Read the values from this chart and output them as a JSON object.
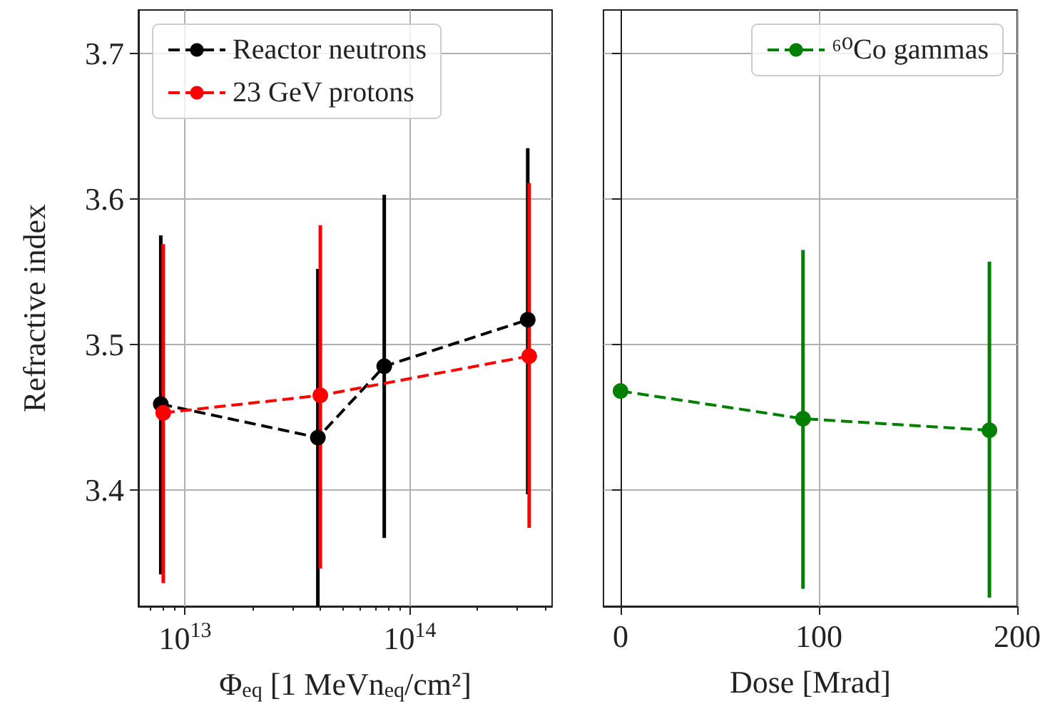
{
  "chart_data": [
    {
      "type": "line",
      "ylabel": "Refractive index",
      "xlabel": "Φ$_{eq}$ [1 MeVn$_{eq}$/cm²]",
      "log": "x",
      "xlim": [
        6200000000000.0,
        430000000000000.0
      ],
      "xticks": [
        {
          "value": 10000000000000.0,
          "label": "10$^{13}$"
        },
        {
          "value": 100000000000000.0,
          "label": "10$^{14}$"
        }
      ],
      "ylim": [
        3.32,
        3.73
      ],
      "yticks": [
        3.4,
        3.5,
        3.6,
        3.7
      ],
      "grid": true,
      "legend": "top left",
      "marker": "circle",
      "line_style": "dashed",
      "series": [
        {
          "name": "Reactor neutrons",
          "color": "#000000",
          "x": [
            7800000000000.0,
            39000000000000.0,
            77000000000000.0,
            335000000000000.0
          ],
          "values": [
            3.459,
            3.436,
            3.485,
            3.517
          ],
          "errors": [
            [
              3.342,
              3.575
            ],
            [
              3.32,
              3.552
            ],
            [
              3.367,
              3.603
            ],
            [
              3.397,
              3.635
            ]
          ]
        },
        {
          "name": "23 GeV protons",
          "color": "#ff0000",
          "x": [
            8000000000000.0,
            40000000000000.0,
            340000000000000.0
          ],
          "values": [
            3.453,
            3.465,
            3.492
          ],
          "errors": [
            [
              3.336,
              3.569
            ],
            [
              3.346,
              3.582
            ],
            [
              3.374,
              3.611
            ]
          ]
        }
      ]
    },
    {
      "type": "line",
      "xlabel": "Dose [Mrad]",
      "xlim": [
        -8.6,
        200
      ],
      "xticks": [
        0,
        100,
        200
      ],
      "ylim": [
        3.32,
        3.73
      ],
      "yticks": [
        3.4,
        3.5,
        3.6,
        3.7
      ],
      "tick_labels": "x",
      "grid": true,
      "legend": "top right",
      "marker": "circle",
      "line_style": "dashed",
      "series": [
        {
          "name": "⁶⁰Co gammas",
          "color": "#008000",
          "x": [
            0,
            92,
            186
          ],
          "values": [
            3.468,
            3.449,
            3.441
          ],
          "errors": [
            null,
            [
              3.332,
              3.565
            ],
            [
              3.326,
              3.557
            ]
          ]
        }
      ]
    }
  ]
}
